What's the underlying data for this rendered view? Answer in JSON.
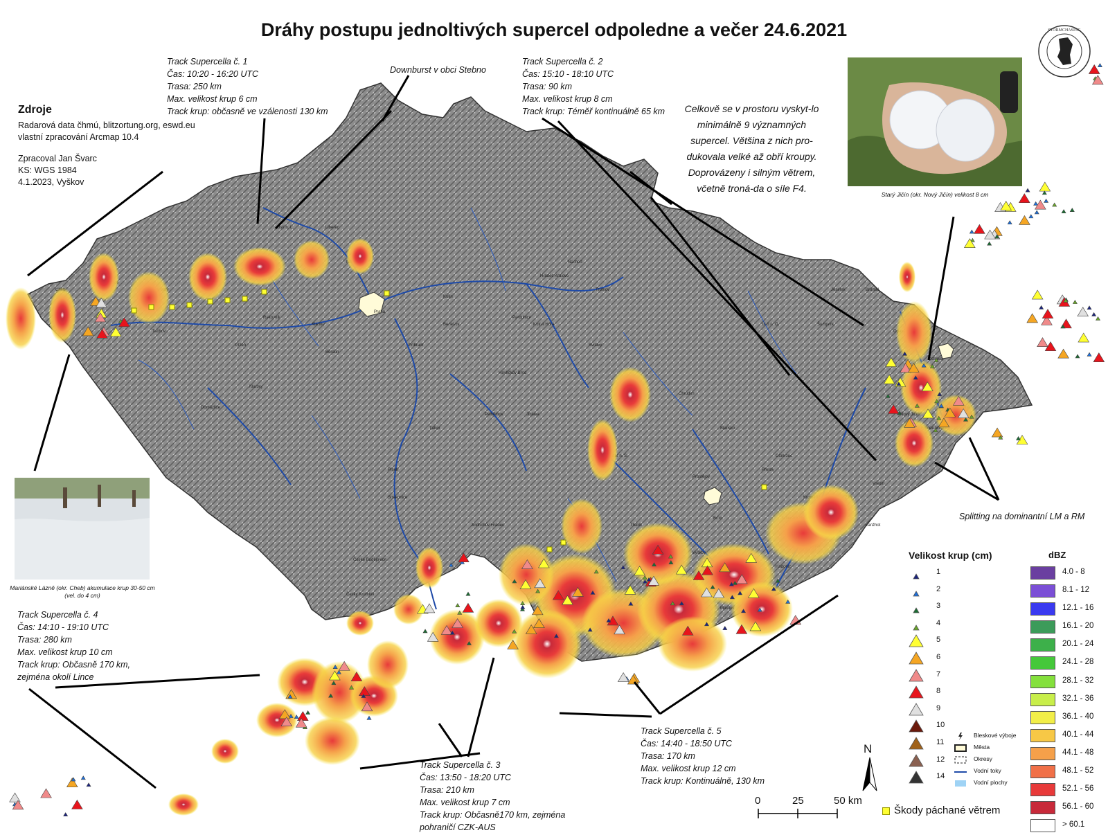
{
  "title": "Dráhy postupu jednoltivých supercel odpoledne a večer 24.6.2021",
  "sources": {
    "heading": "Zdroje",
    "lines": [
      "Radarová data čhmú, blitzortung.org, eswd.eu",
      "vlastní zpracování Arcmap 10.4"
    ],
    "author_lines": [
      "Zpracoval Jan Švarc",
      "KS: WGS 1984",
      "4.1.2023, Vyškov"
    ]
  },
  "tracks": [
    {
      "lines": [
        "Track Supercella č. 1",
        "Čas: 10:20 - 16:20 UTC",
        "Trasa: 250 km",
        "Max. velikost krup 6 cm",
        "Track krup: občasně ve vzálenosti 130 km"
      ]
    },
    {
      "lines": [
        "Track Supercella č. 2",
        "Čas: 15:10 - 18:10 UTC",
        "Trasa: 90 km",
        "Max. velikost krup 8 cm",
        "Track krup: Téměř kontinuálně 65 km"
      ]
    },
    {
      "lines": [
        "Track Supercella č. 3",
        "Čas: 13:50 - 18:20 UTC",
        "Trasa: 210 km",
        "Max. velikost krup 7 cm",
        "Track krup: Občasně170 km, zejména",
        "pohraničí CZK-AUS"
      ]
    },
    {
      "lines": [
        "Track Supercella č. 4",
        "Čas: 14:10 - 19:10 UTC",
        "Trasa: 280 km",
        "Max. velikost krup 10 cm",
        "Track krup: Občasně 170 km,",
        "zejména okolí Lince"
      ]
    },
    {
      "lines": [
        "Track Supercella č. 5",
        "Čas: 14:40 - 18:50 UTC",
        "Trasa: 170 km",
        "Max. velikost krup 12 cm",
        "Track krup: Kontinuálně, 130 km"
      ]
    }
  ],
  "annotations": {
    "downburst": "Downburst v obci Stebno",
    "splitting": "Splitting na dominantní LM a RM"
  },
  "summary": "Celkově se v prostoru vyskyt-lo minimálně 9 významných supercel. Většina z nich pro-dukovala velké až obří kroupy. Doprovázeny i silným větrem, včetně troná-da o síle F4.",
  "photos": {
    "hail_hand_caption": "Starý Jičín (okr. Nový Jičín) velikost 8 cm",
    "hail_field_caption_line1": "Mariánské Lázně (okr. Cheb) akumulace krup 30-50 cm",
    "hail_field_caption_line2": "(vel. do 4 cm)"
  },
  "hail_legend": {
    "title": "Velikost krup (cm)",
    "items": [
      {
        "value": "1",
        "color": "#1a237e"
      },
      {
        "value": "2",
        "color": "#1e6fd9"
      },
      {
        "value": "3",
        "color": "#1b6e33"
      },
      {
        "value": "4",
        "color": "#6aa62a"
      },
      {
        "value": "5",
        "color": "#ffff33"
      },
      {
        "value": "6",
        "color": "#f5a623"
      },
      {
        "value": "7",
        "color": "#f08a8a"
      },
      {
        "value": "8",
        "color": "#e8141c"
      },
      {
        "value": "9",
        "color": "#e0e0e0"
      },
      {
        "value": "10",
        "color": "#6b1a0c"
      },
      {
        "value": "11",
        "color": "#a0621a"
      },
      {
        "value": "12",
        "color": "#8a6050"
      },
      {
        "value": "14",
        "color": "#333333"
      }
    ]
  },
  "dbz_legend": {
    "title": "dBZ",
    "items": [
      {
        "label": "4.0 - 8",
        "color": "#6a3fa0"
      },
      {
        "label": "8.1 - 12",
        "color": "#7b4fd6"
      },
      {
        "label": "12.1 - 16",
        "color": "#3a3af0"
      },
      {
        "label": "16.1 - 20",
        "color": "#3c9b5a"
      },
      {
        "label": "20.1 - 24",
        "color": "#3db04a"
      },
      {
        "label": "24.1 - 28",
        "color": "#45c83a"
      },
      {
        "label": "28.1 - 32",
        "color": "#84e03c"
      },
      {
        "label": "32.1 - 36",
        "color": "#c8ee4a"
      },
      {
        "label": "36.1 - 40",
        "color": "#f2ee48"
      },
      {
        "label": "40.1 - 44",
        "color": "#f7c846"
      },
      {
        "label": "44.1 - 48",
        "color": "#f5a04a"
      },
      {
        "label": "48.1 - 52",
        "color": "#f07048"
      },
      {
        "label": "52.1 - 56",
        "color": "#e83a3a"
      },
      {
        "label": "56.1 - 60",
        "color": "#c82a3a"
      },
      {
        "label": "> 60.1",
        "color": "#ffffff"
      }
    ]
  },
  "symbol_legend": {
    "items": [
      "Bleskové výboje",
      "Města",
      "Okresy",
      "Vodní toky",
      "Vodní plochy"
    ]
  },
  "wind_damage_label": "Škody páchané větrem",
  "scale_bar": {
    "labels": [
      "0",
      "25",
      "50 km"
    ]
  },
  "north_label": "N",
  "logo_text": "AMATEUR STORMCHASING SOCIETY",
  "map_places": [
    "Cheb",
    "Sokolov",
    "Karlovy Vary",
    "Ústí n. L.",
    "Liberec",
    "Praha",
    "Mělník",
    "Kolín",
    "Jihlava",
    "Tábor",
    "Písek",
    "Strakonice",
    "České Budějovice",
    "Český Krumlov",
    "Brno",
    "Břeclav",
    "Hodonín",
    "Kroměříž",
    "Zlín",
    "Vsetín",
    "Olomouc",
    "Přerov",
    "Ostrava",
    "Opava",
    "Nový Jičín",
    "Frýdek-Místek",
    "Karviná",
    "Vyškov",
    "Prostějov",
    "Třebíč",
    "Znojmo",
    "Žďár n. S.",
    "Pardubice",
    "Hradec Králové",
    "Náchod",
    "Trutnov",
    "Havlíčkův Brod",
    "Pelhřimov",
    "Jindřichův Hradec",
    "Klatovy",
    "Plzeň",
    "Domažlice",
    "Tachov",
    "Rakovník",
    "Kladno",
    "Beroun",
    "Příbram",
    "Benešov",
    "Kutná Hora",
    "Chrudim",
    "Svitavy",
    "Ústí n. O.",
    "Šumperk",
    "Jeseník",
    "Bruntál",
    "Kyjov",
    "Uherské Hradiště",
    "Blansko",
    "Mikulov",
    "Lanžhot"
  ]
}
